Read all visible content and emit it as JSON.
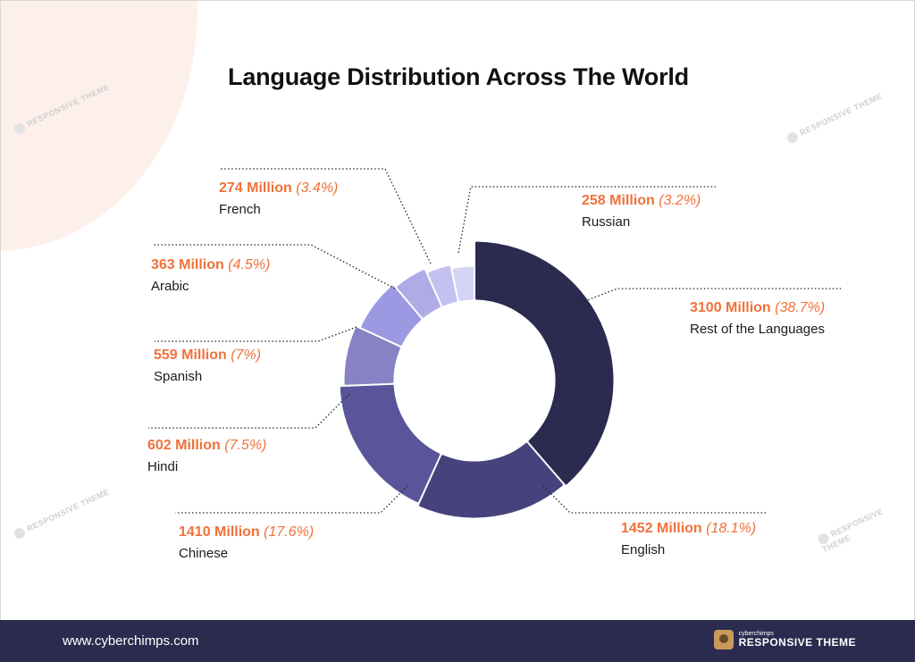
{
  "title": "Language Distribution Across The World",
  "chart_data": {
    "type": "pie",
    "title": "Language Distribution Across The World",
    "slices": [
      {
        "label": "Rest of the Languages",
        "value": 3100,
        "value_text": "3100 Million",
        "percent_text": "(38.7%)",
        "color": "#2b2b50"
      },
      {
        "label": "English",
        "value": 1452,
        "value_text": "1452 Million",
        "percent_text": "(18.1%)",
        "color": "#46427c"
      },
      {
        "label": "Chinese",
        "value": 1410,
        "value_text": "1410 Million",
        "percent_text": "(17.6%)",
        "color": "#5a559a"
      },
      {
        "label": "Hindi",
        "value": 602,
        "value_text": "602 Million",
        "percent_text": "(7.5%)",
        "color": "#8682c4"
      },
      {
        "label": "Spanish",
        "value": 559,
        "value_text": "559 Million",
        "percent_text": "(7%)",
        "color": "#9c99e2"
      },
      {
        "label": "Arabic",
        "value": 363,
        "value_text": "363 Million",
        "percent_text": "(4.5%)",
        "color": "#aeabe6"
      },
      {
        "label": "French",
        "value": 274,
        "value_text": "274 Million",
        "percent_text": "(3.4%)",
        "color": "#c3c1ef"
      },
      {
        "label": "Russian",
        "value": 258,
        "value_text": "258 Million",
        "percent_text": "(3.2%)",
        "color": "#d5d3f6"
      }
    ],
    "value_color": "#f0713a"
  },
  "watermark": {
    "brand": "RESPONSIVE THEME"
  },
  "footer": {
    "url": "www.cyberchimps.com",
    "brand_small": "cyberchimps",
    "brand_big": "RESPONSIVE THEME"
  }
}
